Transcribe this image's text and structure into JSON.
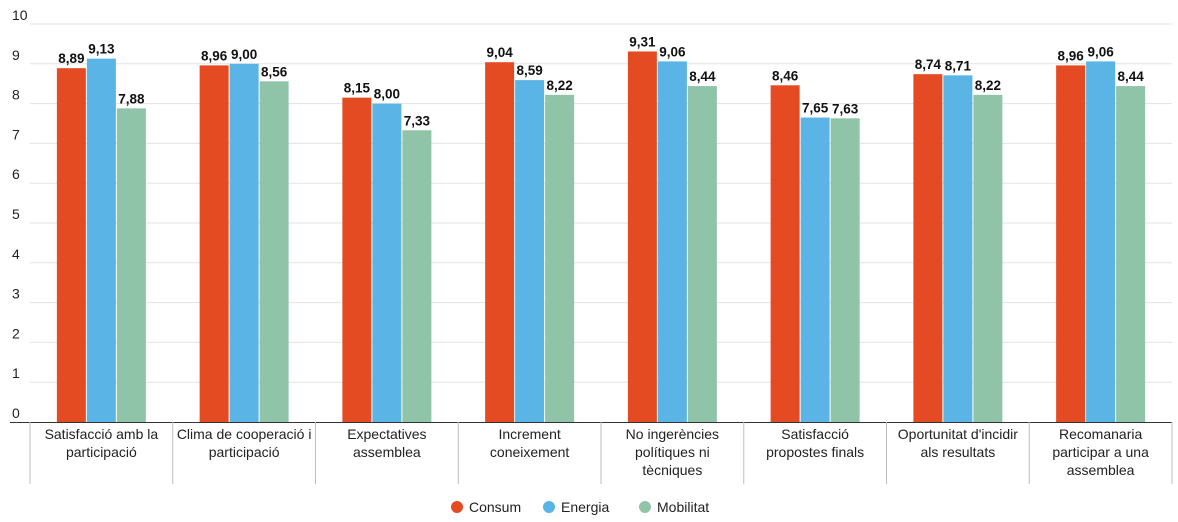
{
  "chart_data": {
    "type": "bar",
    "categories": [
      [
        "Satisfacció amb la",
        "participació"
      ],
      [
        "Clima de cooperació i",
        "participació"
      ],
      [
        "Expectatives",
        "assemblea"
      ],
      [
        "Increment",
        "coneixement"
      ],
      [
        "No ingerències",
        "polítiques ni",
        "tècniques"
      ],
      [
        "Satisfacció",
        "propostes finals"
      ],
      [
        "Oportunitat d'incidir",
        "als resultats"
      ],
      [
        "Recomanaria",
        "participar a una",
        "assemblea"
      ]
    ],
    "series": [
      {
        "name": "Consum",
        "color": "#e54b22",
        "values": [
          8.89,
          8.96,
          8.15,
          9.04,
          9.31,
          8.46,
          8.74,
          8.96
        ],
        "labels": [
          "8,89",
          "8,96",
          "8,15",
          "9,04",
          "9,31",
          "8,46",
          "8,74",
          "8,96"
        ]
      },
      {
        "name": "Energia",
        "color": "#5ab4e6",
        "values": [
          9.13,
          9.0,
          8.0,
          8.59,
          9.06,
          7.65,
          8.71,
          9.06
        ],
        "labels": [
          "9,13",
          "9,00",
          "8,00",
          "8,59",
          "9,06",
          "7,65",
          "8,71",
          "9,06"
        ]
      },
      {
        "name": "Mobilitat",
        "color": "#8fc4a8",
        "values": [
          7.88,
          8.56,
          7.33,
          8.22,
          8.44,
          7.63,
          8.22,
          8.44
        ],
        "labels": [
          "7,88",
          "8,56",
          "7,33",
          "8,22",
          "8,44",
          "7,63",
          "8,22",
          "8,44"
        ]
      }
    ],
    "y_ticks": [
      "0",
      "1",
      "2",
      "3",
      "4",
      "5",
      "6",
      "7",
      "8",
      "9",
      "10"
    ],
    "ylim": [
      0,
      10
    ],
    "grid": true,
    "legend_position": "bottom-center",
    "title": "",
    "xlabel": "",
    "ylabel": ""
  }
}
